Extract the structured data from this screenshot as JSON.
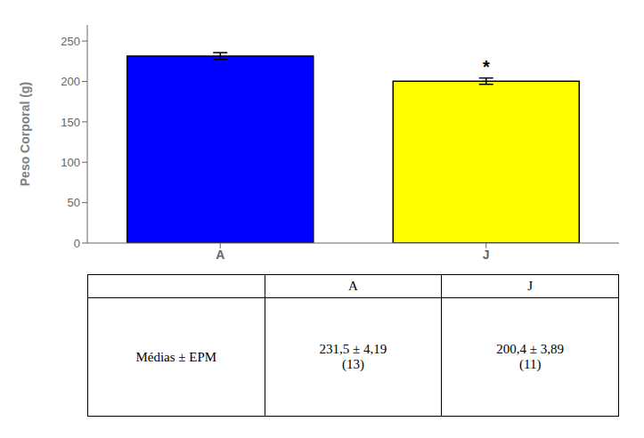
{
  "chart_data": {
    "type": "bar",
    "categories": [
      "A",
      "J"
    ],
    "values": [
      231.5,
      200.4
    ],
    "errors": [
      4.19,
      3.89
    ],
    "colors": [
      "#0000FF",
      "#FFFF00"
    ],
    "ylabel": "Peso Corporal (g)",
    "ylim": [
      0,
      270
    ],
    "yticks": [
      0,
      50,
      100,
      150,
      200,
      250
    ],
    "grid": false,
    "annotations": [
      {
        "text": "*",
        "category": "J"
      }
    ],
    "table": {
      "columns": [
        "A",
        "J"
      ],
      "row_label": "Médias ± EPM",
      "cells": [
        "231,5 ± 4,19\n(13)",
        "200,4 ± 3,89\n(11)"
      ]
    }
  }
}
